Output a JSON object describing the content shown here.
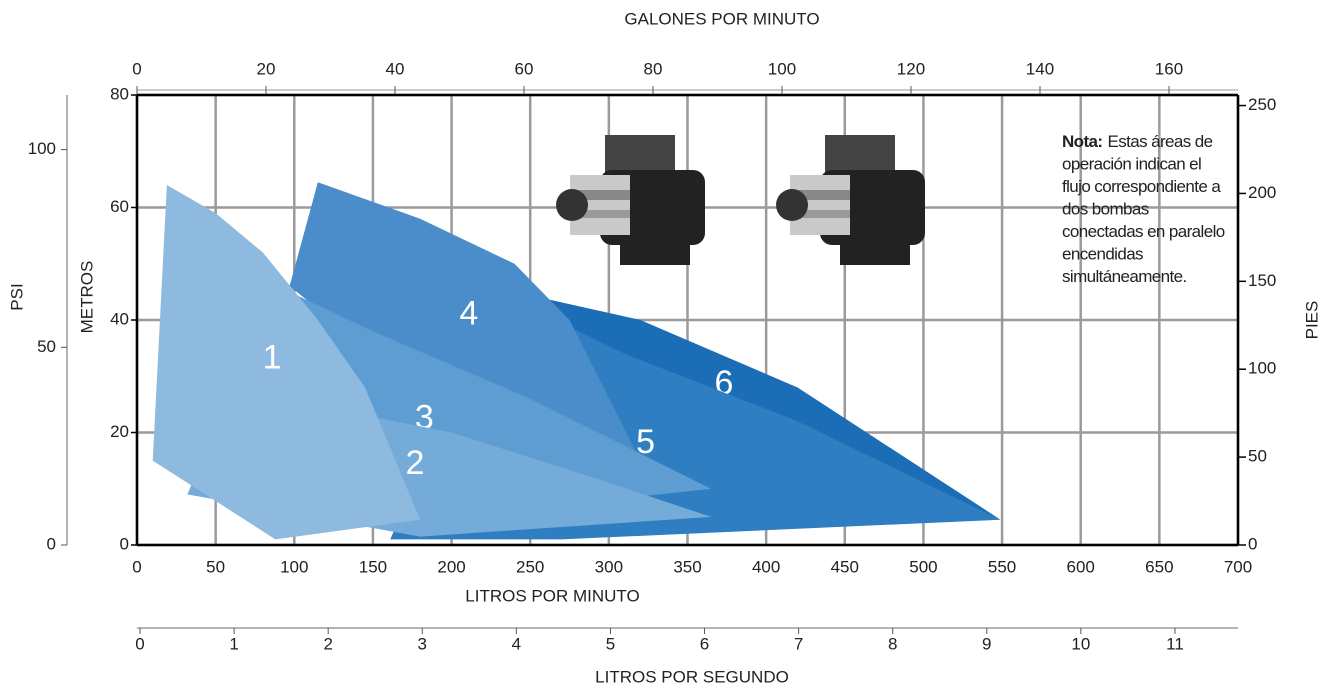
{
  "chart_data": {
    "type": "area-zones",
    "x_label": "LITROS POR MINUTO",
    "xlim": [
      0,
      700
    ],
    "xticks": [
      0,
      50,
      100,
      150,
      200,
      250,
      300,
      350,
      400,
      450,
      500,
      550,
      600,
      650,
      700
    ],
    "y_label": "METROS",
    "ylim": [
      0,
      80
    ],
    "yticks": [
      0,
      20,
      40,
      60,
      80
    ],
    "y2_label": "PIES",
    "y2lim": [
      0,
      256
    ],
    "y2ticks": [
      0,
      50,
      100,
      150,
      200,
      250
    ],
    "psi_label": "PSI",
    "psi_lim": [
      0,
      113.8
    ],
    "psi_ticks": [
      0,
      50,
      100
    ],
    "x2_label": "GALONES POR MINUTO",
    "x2lim": [
      0,
      170.7
    ],
    "x2ticks": [
      0,
      20,
      40,
      60,
      80,
      100,
      120,
      140,
      160
    ],
    "x3_label": "LITROS POR SEGUNDO",
    "x3lim": [
      0,
      11.67
    ],
    "x3ticks": [
      0,
      1,
      2,
      3,
      4,
      5,
      6,
      7,
      8,
      9,
      10,
      11
    ],
    "grid": true,
    "note_title": "Nota:",
    "note_lines": [
      "Estas áreas de",
      "operación indican el",
      "flujo correspondiente a",
      "dos bombas",
      "conectadas en paralelo",
      "encendidas",
      "simultáneamente."
    ],
    "series": [
      {
        "name": "6",
        "color": "#1b6db5",
        "x": [
          240,
          320,
          420,
          549,
          430,
          280
        ],
        "y": [
          45,
          40,
          28,
          4.5,
          15,
          38
        ]
      },
      {
        "name": "5",
        "color": "#2f7ec2",
        "x": [
          161,
          230,
          310,
          420,
          549,
          270
        ],
        "y": [
          1,
          45,
          34,
          22,
          4.5,
          1
        ]
      },
      {
        "name": "4",
        "color": "#4a8dca",
        "x": [
          97,
          115,
          180,
          240,
          275,
          320,
          250
        ],
        "y": [
          46,
          64.5,
          58,
          50,
          40,
          15,
          12
        ]
      },
      {
        "name": "3",
        "color": "#5e9dd2",
        "x": [
          34,
          97,
          150,
          250,
          365,
          200
        ],
        "y": [
          10,
          45,
          38,
          26,
          10,
          5
        ]
      },
      {
        "name": "2",
        "color": "#74abd8",
        "x": [
          32,
          60,
          110,
          200,
          290,
          365,
          180
        ],
        "y": [
          9,
          27,
          25,
          20,
          12,
          5,
          1.5
        ]
      },
      {
        "name": "1",
        "color": "#8dbade",
        "x": [
          10,
          19,
          50,
          80,
          115,
          145,
          180,
          88
        ],
        "y": [
          15,
          64,
          59,
          52,
          40,
          28,
          4.5,
          1
        ]
      }
    ]
  }
}
